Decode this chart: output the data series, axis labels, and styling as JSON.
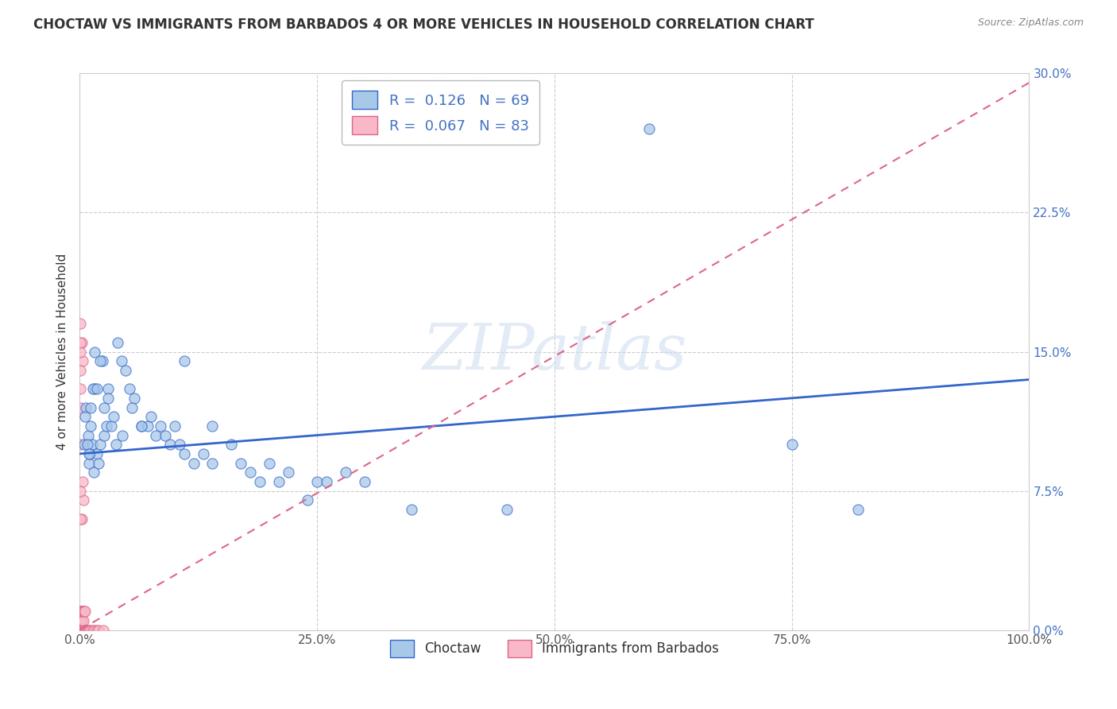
{
  "title": "CHOCTAW VS IMMIGRANTS FROM BARBADOS 4 OR MORE VEHICLES IN HOUSEHOLD CORRELATION CHART",
  "source": "Source: ZipAtlas.com",
  "ylabel": "4 or more Vehicles in Household",
  "legend_labels": [
    "Choctaw",
    "Immigrants from Barbados"
  ],
  "legend_r": [
    0.126,
    0.067
  ],
  "legend_n": [
    69,
    83
  ],
  "blue_color": "#a8c8e8",
  "pink_color": "#f8b8c8",
  "blue_line_color": "#3366cc",
  "pink_line_color": "#dd6688",
  "xlim": [
    0.0,
    1.0
  ],
  "ylim": [
    0.0,
    0.3
  ],
  "xticks": [
    0.0,
    0.25,
    0.5,
    0.75,
    1.0
  ],
  "xticklabels": [
    "0.0%",
    "25.0%",
    "50.0%",
    "75.0%",
    "100.0%"
  ],
  "yticks": [
    0.0,
    0.075,
    0.15,
    0.225,
    0.3
  ],
  "yticklabels": [
    "0.0%",
    "7.5%",
    "15.0%",
    "22.5%",
    "30.0%"
  ],
  "blue_line_x0": 0.0,
  "blue_line_y0": 0.095,
  "blue_line_x1": 1.0,
  "blue_line_y1": 0.135,
  "pink_line_x0": 0.0,
  "pink_line_y0": 0.0,
  "pink_line_x1": 1.0,
  "pink_line_y1": 0.295,
  "blue_x": [
    0.005,
    0.007,
    0.009,
    0.01,
    0.011,
    0.012,
    0.013,
    0.015,
    0.016,
    0.018,
    0.02,
    0.022,
    0.024,
    0.026,
    0.028,
    0.03,
    0.033,
    0.036,
    0.04,
    0.044,
    0.048,
    0.053,
    0.058,
    0.065,
    0.072,
    0.08,
    0.09,
    0.1,
    0.11,
    0.12,
    0.14,
    0.16,
    0.18,
    0.2,
    0.22,
    0.25,
    0.28,
    0.3,
    0.006,
    0.008,
    0.01,
    0.012,
    0.014,
    0.016,
    0.018,
    0.022,
    0.026,
    0.03,
    0.038,
    0.045,
    0.055,
    0.065,
    0.075,
    0.085,
    0.095,
    0.105,
    0.13,
    0.17,
    0.21,
    0.26,
    0.6,
    0.75,
    0.82,
    0.11,
    0.14,
    0.19,
    0.24,
    0.35,
    0.45
  ],
  "blue_y": [
    0.1,
    0.12,
    0.105,
    0.09,
    0.095,
    0.11,
    0.1,
    0.085,
    0.13,
    0.095,
    0.09,
    0.1,
    0.145,
    0.105,
    0.11,
    0.13,
    0.11,
    0.115,
    0.155,
    0.145,
    0.14,
    0.13,
    0.125,
    0.11,
    0.11,
    0.105,
    0.105,
    0.11,
    0.095,
    0.09,
    0.09,
    0.1,
    0.085,
    0.09,
    0.085,
    0.08,
    0.085,
    0.08,
    0.115,
    0.1,
    0.095,
    0.12,
    0.13,
    0.15,
    0.13,
    0.145,
    0.12,
    0.125,
    0.1,
    0.105,
    0.12,
    0.11,
    0.115,
    0.11,
    0.1,
    0.1,
    0.095,
    0.09,
    0.08,
    0.08,
    0.27,
    0.1,
    0.065,
    0.145,
    0.11,
    0.08,
    0.07,
    0.065,
    0.065
  ],
  "pink_x": [
    0.001,
    0.001,
    0.001,
    0.001,
    0.001,
    0.001,
    0.001,
    0.001,
    0.001,
    0.001,
    0.001,
    0.001,
    0.001,
    0.001,
    0.001,
    0.001,
    0.001,
    0.001,
    0.001,
    0.001,
    0.001,
    0.001,
    0.001,
    0.001,
    0.001,
    0.001,
    0.001,
    0.001,
    0.001,
    0.001,
    0.001,
    0.001,
    0.001,
    0.001,
    0.001,
    0.001,
    0.001,
    0.001,
    0.001,
    0.001,
    0.002,
    0.002,
    0.002,
    0.002,
    0.002,
    0.002,
    0.002,
    0.002,
    0.003,
    0.003,
    0.003,
    0.003,
    0.004,
    0.004,
    0.004,
    0.005,
    0.005,
    0.006,
    0.006,
    0.007,
    0.008,
    0.009,
    0.01,
    0.012,
    0.014,
    0.016,
    0.018,
    0.02,
    0.025,
    0.002,
    0.003,
    0.004,
    0.002,
    0.003,
    0.001,
    0.001,
    0.001,
    0.001,
    0.001,
    0.001,
    0.001,
    0.001,
    0.001
  ],
  "pink_y": [
    0.0,
    0.0,
    0.0,
    0.0,
    0.0,
    0.0,
    0.0,
    0.0,
    0.0,
    0.0,
    0.0,
    0.0,
    0.0,
    0.0,
    0.0,
    0.0,
    0.0,
    0.0,
    0.0,
    0.0,
    0.0,
    0.0,
    0.0,
    0.0,
    0.0,
    0.0,
    0.0,
    0.0,
    0.0,
    0.0,
    0.0,
    0.0,
    0.0,
    0.0,
    0.0,
    0.0,
    0.005,
    0.005,
    0.01,
    0.01,
    0.0,
    0.0,
    0.0,
    0.0,
    0.005,
    0.005,
    0.01,
    0.01,
    0.0,
    0.0,
    0.01,
    0.01,
    0.0,
    0.005,
    0.01,
    0.0,
    0.01,
    0.0,
    0.01,
    0.0,
    0.0,
    0.0,
    0.0,
    0.0,
    0.0,
    0.0,
    0.0,
    0.0,
    0.0,
    0.06,
    0.08,
    0.07,
    0.155,
    0.145,
    0.15,
    0.14,
    0.13,
    0.12,
    0.1,
    0.155,
    0.06,
    0.075,
    0.165
  ]
}
